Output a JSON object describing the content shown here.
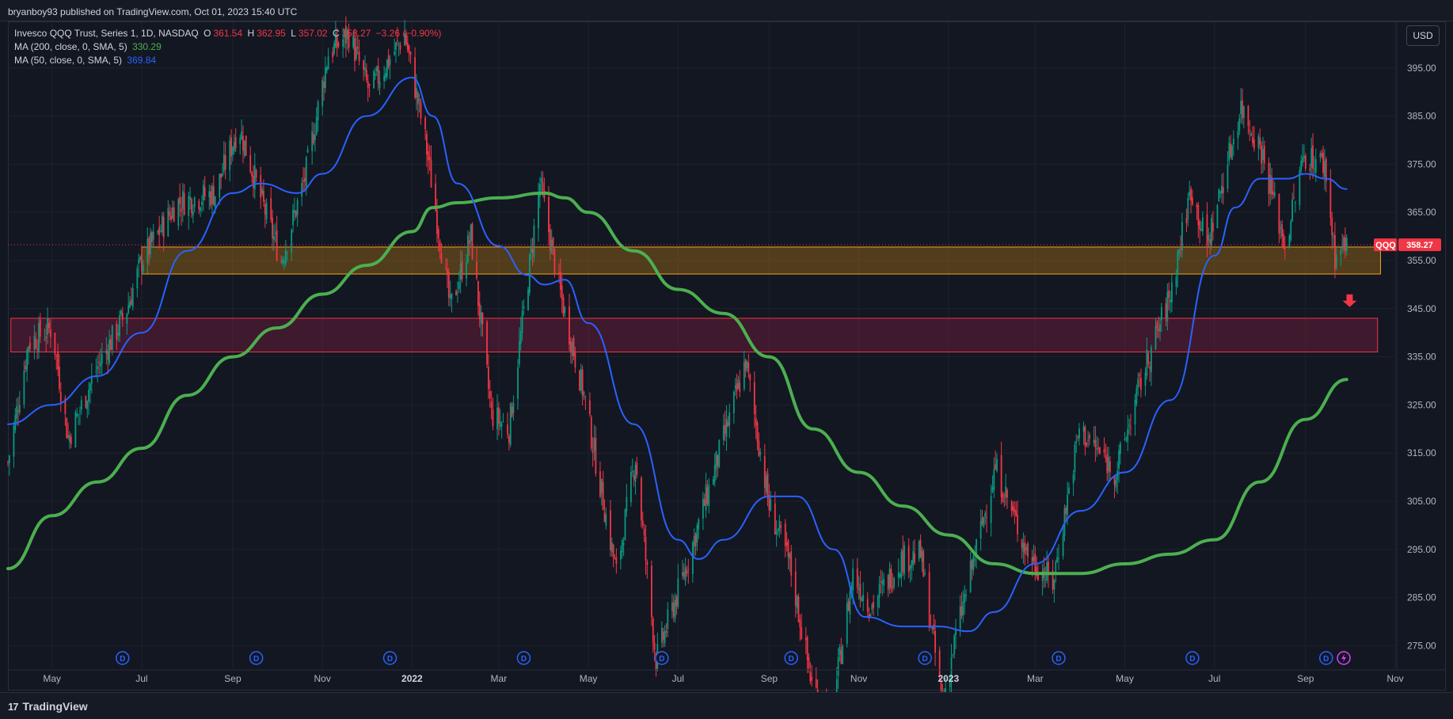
{
  "header": {
    "publish_text": "bryanboy93 published on TradingView.com, Oct 01, 2023 15:40 UTC"
  },
  "legend": {
    "symbol_title": "Invesco QQQ Trust, Series 1, 1D, NASDAQ",
    "open_label": "O",
    "open_value": "361.54",
    "high_label": "H",
    "high_value": "362.95",
    "low_label": "L",
    "low_value": "357.02",
    "close_label": "C",
    "close_value": "358.27",
    "change_value": "−3.26 (−0.90%)",
    "ma200_label": "MA (200, close, 0, SMA, 5)",
    "ma200_value": "330.29",
    "ma200_color": "#4caf50",
    "ma50_label": "MA (50, close, 0, SMA, 5)",
    "ma50_value": "369.84",
    "ma50_color": "#2962ff"
  },
  "currency_button": "USD",
  "footer": {
    "logo_mark": "17",
    "logo_text": "TradingView"
  },
  "chart_data": {
    "type": "candlestick",
    "symbol": "QQQ",
    "timeframe": "1D",
    "last_price": 358.27,
    "last_price_label": "358.27",
    "symbol_tag": "QQQ",
    "ylim": [
      270.3,
      404.5
    ],
    "y_ticks": [
      275,
      285,
      295,
      305,
      315,
      325,
      335,
      345,
      355,
      365,
      375,
      385,
      395
    ],
    "y_tick_labels": [
      "275.00",
      "285.00",
      "295.00",
      "305.00",
      "315.00",
      "325.00",
      "335.00",
      "345.00",
      "355.00",
      "365.00",
      "375.00",
      "385.00",
      "395.00"
    ],
    "x_domain": [
      "2021-04-01",
      "2023-11-01"
    ],
    "x_ticks": [
      {
        "date": "2021-05-01",
        "label": "May"
      },
      {
        "date": "2021-07-01",
        "label": "Jul"
      },
      {
        "date": "2021-09-01",
        "label": "Sep"
      },
      {
        "date": "2021-11-01",
        "label": "Nov"
      },
      {
        "date": "2022-01-01",
        "label": "2022",
        "bold": true
      },
      {
        "date": "2022-03-01",
        "label": "Mar"
      },
      {
        "date": "2022-05-01",
        "label": "May"
      },
      {
        "date": "2022-07-01",
        "label": "Jul"
      },
      {
        "date": "2022-09-01",
        "label": "Sep"
      },
      {
        "date": "2022-11-01",
        "label": "Nov"
      },
      {
        "date": "2023-01-01",
        "label": "2023",
        "bold": true
      },
      {
        "date": "2023-03-01",
        "label": "Mar"
      },
      {
        "date": "2023-05-01",
        "label": "May"
      },
      {
        "date": "2023-07-01",
        "label": "Jul"
      },
      {
        "date": "2023-09-01",
        "label": "Sep"
      },
      {
        "date": "2023-11-01",
        "label": "Nov"
      }
    ],
    "price_path": [
      [
        "2021-04-01",
        313
      ],
      [
        "2021-04-15",
        338
      ],
      [
        "2021-05-01",
        341
      ],
      [
        "2021-05-12",
        318
      ],
      [
        "2021-06-01",
        333
      ],
      [
        "2021-06-20",
        344
      ],
      [
        "2021-07-01",
        355
      ],
      [
        "2021-07-25",
        367
      ],
      [
        "2021-08-20",
        369
      ],
      [
        "2021-09-05",
        383
      ],
      [
        "2021-09-20",
        368
      ],
      [
        "2021-10-04",
        355
      ],
      [
        "2021-10-20",
        372
      ],
      [
        "2021-11-05",
        398
      ],
      [
        "2021-11-19",
        402
      ],
      [
        "2021-12-03",
        390
      ],
      [
        "2021-12-27",
        402
      ],
      [
        "2022-01-10",
        380
      ],
      [
        "2022-01-27",
        345
      ],
      [
        "2022-02-10",
        360
      ],
      [
        "2022-02-24",
        323
      ],
      [
        "2022-03-08",
        320
      ],
      [
        "2022-03-29",
        371
      ],
      [
        "2022-04-12",
        348
      ],
      [
        "2022-04-28",
        327
      ],
      [
        "2022-05-20",
        290
      ],
      [
        "2022-06-02",
        314
      ],
      [
        "2022-06-16",
        272
      ],
      [
        "2022-07-05",
        290
      ],
      [
        "2022-08-01",
        318
      ],
      [
        "2022-08-16",
        334
      ],
      [
        "2022-09-01",
        304
      ],
      [
        "2022-09-15",
        292
      ],
      [
        "2022-09-30",
        267
      ],
      [
        "2022-10-13",
        260
      ],
      [
        "2022-10-28",
        290
      ],
      [
        "2022-11-09",
        283
      ],
      [
        "2022-11-30",
        293
      ],
      [
        "2022-12-13",
        294
      ],
      [
        "2022-12-28",
        263
      ],
      [
        "2023-01-06",
        277
      ],
      [
        "2023-02-02",
        312
      ],
      [
        "2023-02-24",
        294
      ],
      [
        "2023-03-13",
        288
      ],
      [
        "2023-03-31",
        320
      ],
      [
        "2023-04-25",
        311
      ],
      [
        "2023-05-12",
        330
      ],
      [
        "2023-06-01",
        348
      ],
      [
        "2023-06-15",
        370
      ],
      [
        "2023-06-26",
        358
      ],
      [
        "2023-07-19",
        387
      ],
      [
        "2023-08-02",
        378
      ],
      [
        "2023-08-18",
        358
      ],
      [
        "2023-08-31",
        377
      ],
      [
        "2023-09-14",
        375
      ],
      [
        "2023-09-21",
        356
      ],
      [
        "2023-09-29",
        358.27
      ]
    ],
    "series": [
      {
        "name": "MA (200, close, 0, SMA, 5)",
        "color": "#4caf50",
        "points": [
          [
            "2021-04-01",
            291
          ],
          [
            "2021-05-01",
            302
          ],
          [
            "2021-06-01",
            309
          ],
          [
            "2021-07-01",
            316
          ],
          [
            "2021-08-01",
            327
          ],
          [
            "2021-09-01",
            335
          ],
          [
            "2021-10-01",
            341
          ],
          [
            "2021-11-01",
            348
          ],
          [
            "2021-12-01",
            354
          ],
          [
            "2022-01-01",
            361
          ],
          [
            "2022-01-15",
            366
          ],
          [
            "2022-02-01",
            367
          ],
          [
            "2022-03-01",
            368
          ],
          [
            "2022-04-01",
            369
          ],
          [
            "2022-04-15",
            368
          ],
          [
            "2022-05-01",
            365
          ],
          [
            "2022-06-01",
            357
          ],
          [
            "2022-07-01",
            349
          ],
          [
            "2022-08-01",
            344
          ],
          [
            "2022-09-01",
            335
          ],
          [
            "2022-10-01",
            320
          ],
          [
            "2022-11-01",
            311
          ],
          [
            "2022-12-01",
            304
          ],
          [
            "2023-01-01",
            298
          ],
          [
            "2023-02-01",
            292
          ],
          [
            "2023-03-01",
            290
          ],
          [
            "2023-04-01",
            290
          ],
          [
            "2023-05-01",
            292
          ],
          [
            "2023-06-01",
            294
          ],
          [
            "2023-07-01",
            297
          ],
          [
            "2023-08-01",
            309
          ],
          [
            "2023-09-01",
            322
          ],
          [
            "2023-09-29",
            330.29
          ]
        ]
      },
      {
        "name": "MA (50, close, 0, SMA, 5)",
        "color": "#2962ff",
        "points": [
          [
            "2021-04-01",
            321
          ],
          [
            "2021-05-01",
            325
          ],
          [
            "2021-06-01",
            331
          ],
          [
            "2021-07-01",
            340
          ],
          [
            "2021-08-01",
            357
          ],
          [
            "2021-09-01",
            369
          ],
          [
            "2021-09-20",
            371
          ],
          [
            "2021-10-15",
            369
          ],
          [
            "2021-11-01",
            373
          ],
          [
            "2021-12-01",
            385
          ],
          [
            "2022-01-01",
            393
          ],
          [
            "2022-01-15",
            385
          ],
          [
            "2022-02-01",
            371
          ],
          [
            "2022-03-01",
            358
          ],
          [
            "2022-03-20",
            352
          ],
          [
            "2022-04-01",
            350
          ],
          [
            "2022-04-15",
            351
          ],
          [
            "2022-05-01",
            342
          ],
          [
            "2022-06-01",
            321
          ],
          [
            "2022-07-01",
            297
          ],
          [
            "2022-07-15",
            293
          ],
          [
            "2022-08-01",
            297
          ],
          [
            "2022-09-01",
            306
          ],
          [
            "2022-09-20",
            306
          ],
          [
            "2022-10-15",
            295
          ],
          [
            "2022-11-05",
            281
          ],
          [
            "2022-12-01",
            279
          ],
          [
            "2022-12-25",
            279
          ],
          [
            "2023-01-15",
            278
          ],
          [
            "2023-02-01",
            282
          ],
          [
            "2023-03-01",
            292
          ],
          [
            "2023-04-01",
            303
          ],
          [
            "2023-05-01",
            311
          ],
          [
            "2023-06-01",
            326
          ],
          [
            "2023-07-01",
            356
          ],
          [
            "2023-07-15",
            366
          ],
          [
            "2023-08-01",
            372
          ],
          [
            "2023-08-20",
            372
          ],
          [
            "2023-09-01",
            373
          ],
          [
            "2023-09-15",
            372
          ],
          [
            "2023-09-29",
            369.84
          ]
        ]
      }
    ],
    "zones": [
      {
        "name": "resistance-support-zone",
        "from_date": "2021-07-01",
        "to_date": "2023-10-22",
        "y_low": 352.2,
        "y_high": 357.8,
        "fill": "#f59e0b",
        "stroke": "#f5a623"
      },
      {
        "name": "demand-zone",
        "from_date": "2021-04-03",
        "to_date": "2023-10-20",
        "y_low": 336,
        "y_high": 343,
        "fill": "#b2224a",
        "stroke": "#f23645"
      }
    ],
    "dividend_markers": [
      "2021-06-18",
      "2021-09-17",
      "2021-12-17",
      "2022-03-18",
      "2022-06-20",
      "2022-09-16",
      "2022-12-16",
      "2023-03-17",
      "2023-06-16",
      "2023-09-15"
    ],
    "dividend_label": "D",
    "flash_marker_date": "2023-09-27",
    "down_arrow": {
      "date": "2023-10-01",
      "price": 346
    }
  }
}
